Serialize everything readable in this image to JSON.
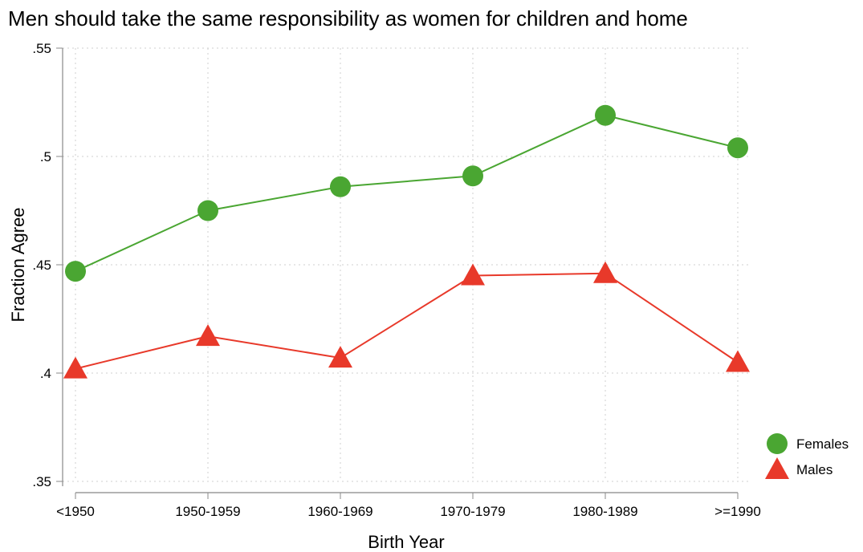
{
  "chart_data": {
    "type": "line",
    "title": "Men should take the same responsibility as women for children and home",
    "xlabel": "Birth Year",
    "ylabel": "Fraction Agree",
    "categories": [
      "<1950",
      "1950-1959",
      "1960-1969",
      "1970-1979",
      "1980-1989",
      ">=1990"
    ],
    "y_ticks": [
      ".35",
      ".4",
      ".45",
      ".5",
      ".55"
    ],
    "y_tick_values": [
      0.35,
      0.4,
      0.45,
      0.5,
      0.55
    ],
    "ylim": [
      0.35,
      0.55
    ],
    "grid": true,
    "legend_position": "bottom-right",
    "series": [
      {
        "name": "Females",
        "marker": "circle",
        "color": "#4aa632",
        "values": [
          0.447,
          0.475,
          0.486,
          0.491,
          0.519,
          0.504
        ]
      },
      {
        "name": "Males",
        "marker": "triangle",
        "color": "#e8392a",
        "values": [
          0.402,
          0.417,
          0.407,
          0.445,
          0.446,
          0.405
        ]
      }
    ]
  }
}
